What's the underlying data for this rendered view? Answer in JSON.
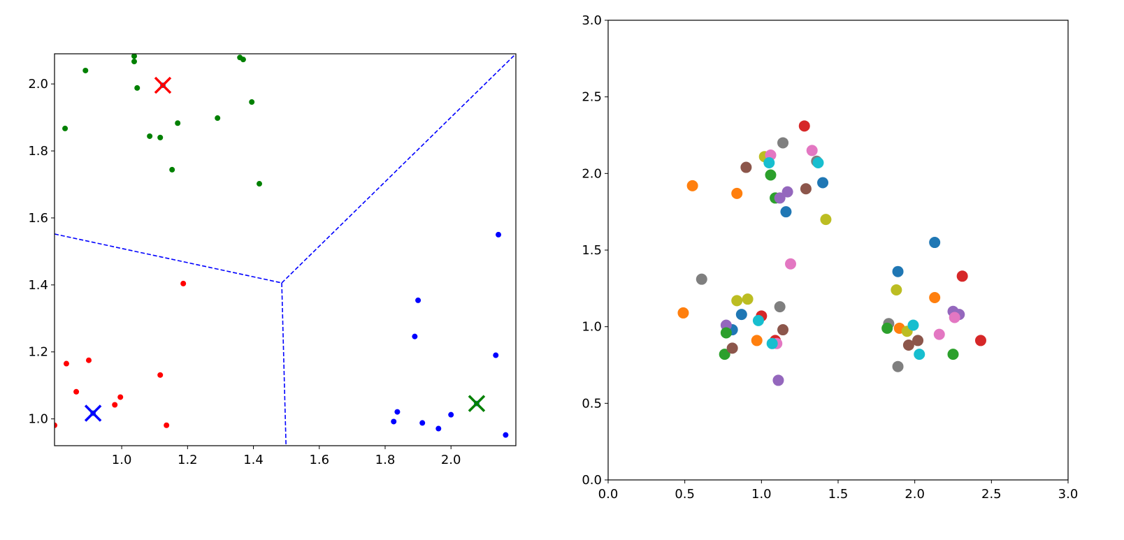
{
  "chart_data": [
    {
      "type": "scatter",
      "title": "",
      "xlabel": "",
      "ylabel": "",
      "xlim": [
        0.796,
        2.197
      ],
      "ylim": [
        0.92,
        2.09
      ],
      "xticks": [
        "1.0",
        "1.2",
        "1.4",
        "1.6",
        "1.8",
        "2.0"
      ],
      "yticks": [
        "1.0",
        "1.2",
        "1.4",
        "1.6",
        "1.8",
        "2.0"
      ],
      "grid": false,
      "series": [
        {
          "name": "cluster-green",
          "color": "#008000",
          "points": [
            [
              0.89,
              2.04
            ],
            [
              0.828,
              1.867
            ],
            [
              1.038,
              2.083
            ],
            [
              1.038,
              2.067
            ],
            [
              1.047,
              1.988
            ],
            [
              1.085,
              1.844
            ],
            [
              1.117,
              1.84
            ],
            [
              1.17,
              1.883
            ],
            [
              1.153,
              1.744
            ],
            [
              1.291,
              1.898
            ],
            [
              1.359,
              2.079
            ],
            [
              1.369,
              2.073
            ],
            [
              1.395,
              1.946
            ],
            [
              1.418,
              1.702
            ]
          ]
        },
        {
          "name": "cluster-red",
          "color": "#ff0000",
          "points": [
            [
              0.796,
              0.981
            ],
            [
              0.832,
              1.165
            ],
            [
              0.862,
              1.081
            ],
            [
              0.9,
              1.175
            ],
            [
              0.979,
              1.042
            ],
            [
              0.996,
              1.065
            ],
            [
              1.117,
              1.131
            ],
            [
              1.136,
              0.981
            ],
            [
              1.187,
              1.404
            ]
          ]
        },
        {
          "name": "cluster-blue",
          "color": "#0000ff",
          "points": [
            [
              2.144,
              1.55
            ],
            [
              1.9,
              1.354
            ],
            [
              1.89,
              1.246
            ],
            [
              2.136,
              1.19
            ],
            [
              1.837,
              1.021
            ],
            [
              1.826,
              0.992
            ],
            [
              1.913,
              0.988
            ],
            [
              1.962,
              0.971
            ],
            [
              2.0,
              1.0125
            ],
            [
              2.166,
              0.952
            ]
          ]
        }
      ],
      "centroids": [
        {
          "color": "#ff0000",
          "point": [
            1.125,
            1.996
          ]
        },
        {
          "color": "#0000ff",
          "point": [
            0.913,
            1.017
          ]
        },
        {
          "color": "#008000",
          "point": [
            2.078,
            1.046
          ]
        }
      ],
      "centroid_dot_color": "#1f77b4",
      "boundary_color": "#0000ff",
      "boundaries": [
        [
          [
            0.796,
            1.552
          ],
          [
            1.486,
            1.406
          ]
        ],
        [
          [
            1.486,
            1.406
          ],
          [
            2.197,
            2.09
          ]
        ],
        [
          [
            1.486,
            1.406
          ],
          [
            1.499,
            0.92
          ]
        ]
      ]
    },
    {
      "type": "scatter",
      "title": "",
      "xlabel": "",
      "ylabel": "",
      "xlim": [
        0,
        3
      ],
      "ylim": [
        0,
        3
      ],
      "xticks": [
        "0.0",
        "0.5",
        "1.0",
        "1.5",
        "2.0",
        "2.5",
        "3.0"
      ],
      "yticks": [
        "0.0",
        "0.5",
        "1.0",
        "1.5",
        "2.0",
        "2.5",
        "3.0"
      ],
      "grid": false,
      "points": [
        {
          "c": "#ff7f0e",
          "p": [
            0.55,
            1.92
          ]
        },
        {
          "c": "#ff7f0e",
          "p": [
            0.84,
            1.87
          ]
        },
        {
          "c": "#8c564b",
          "p": [
            0.9,
            2.04
          ]
        },
        {
          "c": "#bcbd22",
          "p": [
            1.02,
            2.11
          ]
        },
        {
          "c": "#e377c2",
          "p": [
            1.06,
            2.12
          ]
        },
        {
          "c": "#17becf",
          "p": [
            1.05,
            2.07
          ]
        },
        {
          "c": "#7f7f7f",
          "p": [
            1.14,
            2.2
          ]
        },
        {
          "c": "#2ca02c",
          "p": [
            1.06,
            1.99
          ]
        },
        {
          "c": "#2ca02c",
          "p": [
            1.09,
            1.84
          ]
        },
        {
          "c": "#9467bd",
          "p": [
            1.12,
            1.84
          ]
        },
        {
          "c": "#9467bd",
          "p": [
            1.17,
            1.88
          ]
        },
        {
          "c": "#1f77b4",
          "p": [
            1.16,
            1.75
          ]
        },
        {
          "c": "#d62728",
          "p": [
            1.28,
            2.31
          ]
        },
        {
          "c": "#e377c2",
          "p": [
            1.33,
            2.15
          ]
        },
        {
          "c": "#7f7f7f",
          "p": [
            1.36,
            2.08
          ]
        },
        {
          "c": "#17becf",
          "p": [
            1.37,
            2.07
          ]
        },
        {
          "c": "#8c564b",
          "p": [
            1.29,
            1.9
          ]
        },
        {
          "c": "#1f77b4",
          "p": [
            1.4,
            1.94
          ]
        },
        {
          "c": "#bcbd22",
          "p": [
            1.42,
            1.7
          ]
        },
        {
          "c": "#7f7f7f",
          "p": [
            0.61,
            1.31
          ]
        },
        {
          "c": "#ff7f0e",
          "p": [
            0.49,
            1.09
          ]
        },
        {
          "c": "#bcbd22",
          "p": [
            0.84,
            1.17
          ]
        },
        {
          "c": "#bcbd22",
          "p": [
            0.91,
            1.18
          ]
        },
        {
          "c": "#1f77b4",
          "p": [
            0.87,
            1.08
          ]
        },
        {
          "c": "#1f77b4",
          "p": [
            0.81,
            0.98
          ]
        },
        {
          "c": "#9467bd",
          "p": [
            0.77,
            1.01
          ]
        },
        {
          "c": "#2ca02c",
          "p": [
            0.77,
            0.96
          ]
        },
        {
          "c": "#2ca02c",
          "p": [
            0.76,
            0.82
          ]
        },
        {
          "c": "#8c564b",
          "p": [
            0.81,
            0.86
          ]
        },
        {
          "c": "#ff7f0e",
          "p": [
            0.97,
            0.91
          ]
        },
        {
          "c": "#d62728",
          "p": [
            1.0,
            1.07
          ]
        },
        {
          "c": "#17becf",
          "p": [
            0.98,
            1.04
          ]
        },
        {
          "c": "#7f7f7f",
          "p": [
            1.12,
            1.13
          ]
        },
        {
          "c": "#8c564b",
          "p": [
            1.14,
            0.98
          ]
        },
        {
          "c": "#d62728",
          "p": [
            1.09,
            0.91
          ]
        },
        {
          "c": "#e377c2",
          "p": [
            1.1,
            0.89
          ]
        },
        {
          "c": "#17becf",
          "p": [
            1.07,
            0.89
          ]
        },
        {
          "c": "#9467bd",
          "p": [
            1.11,
            0.65
          ]
        },
        {
          "c": "#e377c2",
          "p": [
            1.19,
            1.41
          ]
        },
        {
          "c": "#1f77b4",
          "p": [
            2.13,
            1.55
          ]
        },
        {
          "c": "#1f77b4",
          "p": [
            1.89,
            1.36
          ]
        },
        {
          "c": "#bcbd22",
          "p": [
            1.88,
            1.24
          ]
        },
        {
          "c": "#d62728",
          "p": [
            2.31,
            1.33
          ]
        },
        {
          "c": "#ff7f0e",
          "p": [
            2.13,
            1.19
          ]
        },
        {
          "c": "#9467bd",
          "p": [
            2.25,
            1.1
          ]
        },
        {
          "c": "#9467bd",
          "p": [
            2.29,
            1.08
          ]
        },
        {
          "c": "#e377c2",
          "p": [
            2.26,
            1.06
          ]
        },
        {
          "c": "#7f7f7f",
          "p": [
            1.83,
            1.02
          ]
        },
        {
          "c": "#2ca02c",
          "p": [
            1.82,
            0.99
          ]
        },
        {
          "c": "#ff7f0e",
          "p": [
            1.9,
            0.99
          ]
        },
        {
          "c": "#bcbd22",
          "p": [
            1.95,
            0.97
          ]
        },
        {
          "c": "#17becf",
          "p": [
            1.99,
            1.01
          ]
        },
        {
          "c": "#8c564b",
          "p": [
            2.02,
            0.91
          ]
        },
        {
          "c": "#8c564b",
          "p": [
            1.96,
            0.88
          ]
        },
        {
          "c": "#e377c2",
          "p": [
            2.16,
            0.95
          ]
        },
        {
          "c": "#17becf",
          "p": [
            2.03,
            0.82
          ]
        },
        {
          "c": "#7f7f7f",
          "p": [
            1.89,
            0.74
          ]
        },
        {
          "c": "#2ca02c",
          "p": [
            2.25,
            0.82
          ]
        },
        {
          "c": "#d62728",
          "p": [
            2.43,
            0.91
          ]
        }
      ]
    }
  ]
}
